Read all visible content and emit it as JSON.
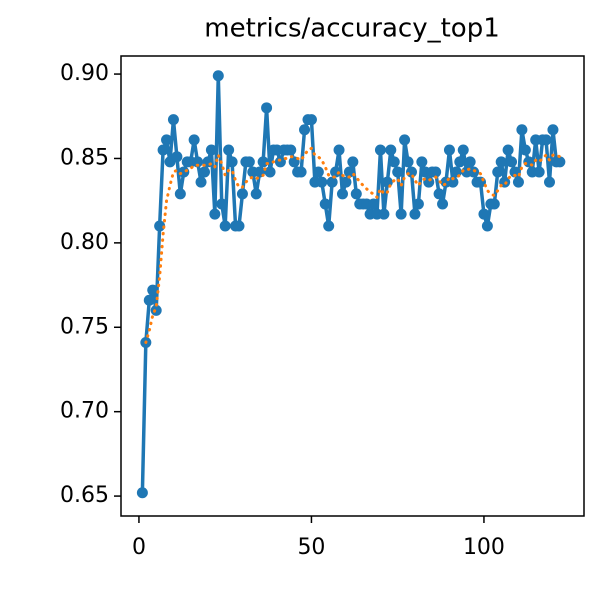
{
  "chart_data": {
    "type": "line",
    "title": "metrics/accuracy_top1",
    "x": [
      1,
      2,
      3,
      4,
      5,
      6,
      7,
      8,
      9,
      10,
      11,
      12,
      13,
      14,
      15,
      16,
      17,
      18,
      19,
      20,
      21,
      22,
      23,
      24,
      25,
      26,
      27,
      28,
      29,
      30,
      31,
      32,
      33,
      34,
      35,
      36,
      37,
      38,
      39,
      40,
      41,
      42,
      43,
      44,
      45,
      46,
      47,
      48,
      49,
      50,
      51,
      52,
      53,
      54,
      55,
      56,
      57,
      58,
      59,
      60,
      61,
      62,
      63,
      64,
      65,
      66,
      67,
      68,
      69,
      70,
      71,
      72,
      73,
      74,
      75,
      76,
      77,
      78,
      79,
      80,
      81,
      82,
      83,
      84,
      85,
      86,
      87,
      88,
      89,
      90,
      91,
      92,
      93,
      94,
      95,
      96,
      97,
      98,
      99,
      100,
      101,
      102,
      103,
      104,
      105,
      106,
      107,
      108,
      109,
      110,
      111,
      112,
      113,
      114,
      115,
      116,
      117,
      118,
      119,
      120,
      121,
      122
    ],
    "series": [
      {
        "color": "#1f77b4",
        "style": "solid",
        "markers": true,
        "values": [
          0.652,
          0.741,
          0.766,
          0.772,
          0.76,
          0.81,
          0.855,
          0.861,
          0.848,
          0.873,
          0.851,
          0.829,
          0.842,
          0.848,
          0.848,
          0.861,
          0.848,
          0.836,
          0.842,
          0.848,
          0.855,
          0.817,
          0.899,
          0.823,
          0.81,
          0.855,
          0.848,
          0.81,
          0.81,
          0.829,
          0.848,
          0.848,
          0.842,
          0.829,
          0.842,
          0.848,
          0.88,
          0.842,
          0.855,
          0.855,
          0.848,
          0.855,
          0.855,
          0.855,
          0.848,
          0.842,
          0.842,
          0.867,
          0.873,
          0.873,
          0.836,
          0.842,
          0.836,
          0.823,
          0.81,
          0.836,
          0.842,
          0.855,
          0.829,
          0.836,
          0.842,
          0.848,
          0.829,
          0.823,
          0.823,
          0.823,
          0.817,
          0.823,
          0.817,
          0.855,
          0.817,
          0.836,
          0.855,
          0.848,
          0.842,
          0.817,
          0.861,
          0.848,
          0.842,
          0.817,
          0.823,
          0.848,
          0.842,
          0.836,
          0.842,
          0.842,
          0.829,
          0.823,
          0.836,
          0.855,
          0.836,
          0.842,
          0.848,
          0.855,
          0.842,
          0.848,
          0.842,
          0.836,
          0.836,
          0.817,
          0.81,
          0.823,
          0.823,
          0.842,
          0.848,
          0.836,
          0.855,
          0.848,
          0.842,
          0.836,
          0.867,
          0.855,
          0.848,
          0.842,
          0.861,
          0.842,
          0.861,
          0.861,
          0.836,
          0.867,
          0.848,
          0.848
        ]
      },
      {
        "color": "#ff7f0e",
        "style": "dotted",
        "markers": false,
        "values": [
          null,
          0.741,
          0.748,
          0.757,
          0.762,
          0.78,
          0.805,
          0.825,
          0.834,
          0.842,
          0.843,
          0.841,
          0.842,
          0.843,
          0.844,
          0.846,
          0.846,
          0.846,
          0.846,
          0.846,
          0.847,
          0.845,
          0.852,
          0.847,
          0.84,
          0.843,
          0.843,
          0.837,
          0.833,
          0.833,
          0.836,
          0.838,
          0.839,
          0.838,
          0.839,
          0.84,
          0.847,
          0.847,
          0.848,
          0.849,
          0.849,
          0.85,
          0.85,
          0.851,
          0.851,
          0.85,
          0.849,
          0.852,
          0.855,
          0.856,
          0.852,
          0.851,
          0.849,
          0.845,
          0.84,
          0.839,
          0.839,
          0.842,
          0.84,
          0.839,
          0.839,
          0.841,
          0.839,
          0.836,
          0.834,
          0.832,
          0.83,
          0.829,
          0.827,
          0.832,
          0.829,
          0.83,
          0.835,
          0.837,
          0.838,
          0.834,
          0.839,
          0.841,
          0.841,
          0.837,
          0.834,
          0.837,
          0.838,
          0.837,
          0.838,
          0.839,
          0.837,
          0.834,
          0.835,
          0.839,
          0.838,
          0.839,
          0.84,
          0.843,
          0.843,
          0.844,
          0.843,
          0.842,
          0.841,
          0.836,
          0.831,
          0.829,
          0.828,
          0.831,
          0.834,
          0.834,
          0.838,
          0.84,
          0.84,
          0.839,
          0.845,
          0.847,
          0.847,
          0.846,
          0.849,
          0.848,
          0.85,
          0.852,
          0.849,
          0.852,
          0.852,
          0.851
        ]
      }
    ],
    "xlim": [
      -5.2,
      129
    ],
    "ylim": [
      0.6382,
      0.9107
    ],
    "xticks": [
      0,
      50,
      100
    ],
    "yticks": [
      0.65,
      {
        "value": 0.7,
        "label": "0.70"
      },
      0.75,
      {
        "value": 0.8,
        "label": "0.80"
      },
      0.85,
      {
        "value": 0.9,
        "label": "0.90"
      }
    ],
    "grid": false
  }
}
